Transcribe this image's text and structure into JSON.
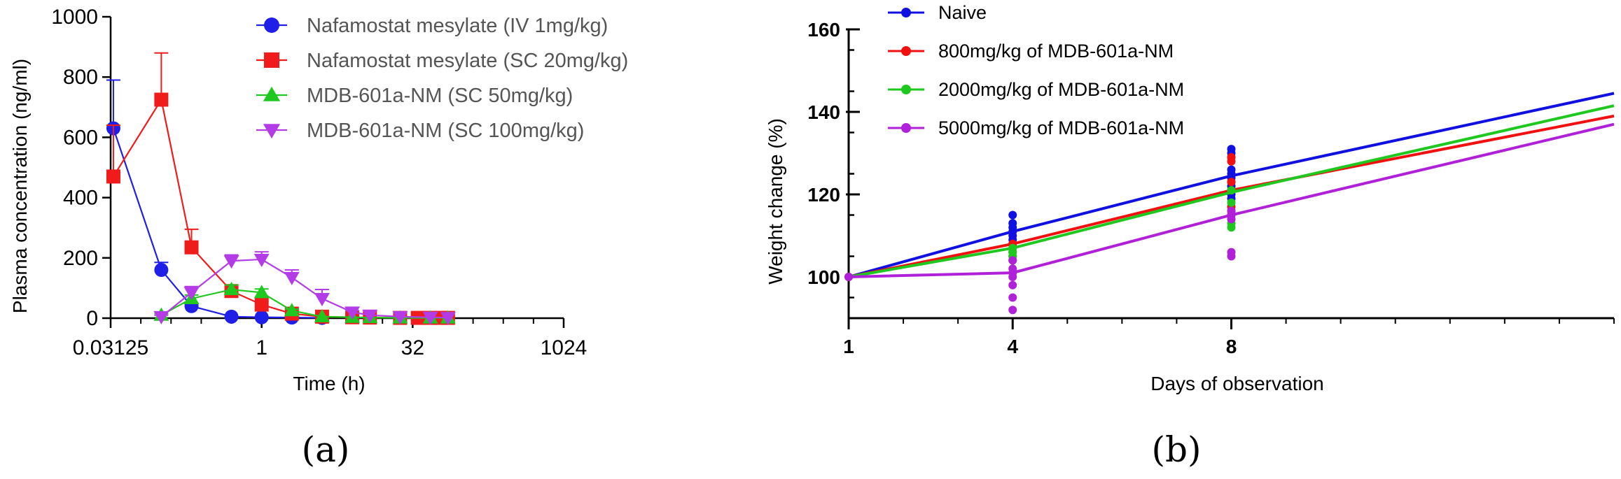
{
  "chart_data": [
    {
      "type": "line",
      "panel_label": "(a)",
      "xscale": "log2",
      "xlabel": "Time (h)",
      "ylabel": "Plasma concentration (ng/ml)",
      "xlim": [
        0.03125,
        1024
      ],
      "ylim": [
        0,
        1000
      ],
      "x_ticks": [
        0.03125,
        1,
        32,
        1024
      ],
      "x_tick_labels": [
        "0.03125",
        "1",
        "32",
        "1024"
      ],
      "y_ticks": [
        0,
        200,
        400,
        600,
        800,
        1000
      ],
      "y_tick_labels": [
        "0",
        "200",
        "400",
        "600",
        "800",
        "1000"
      ],
      "legend_position": "top-right",
      "series": [
        {
          "name": "Nafamostat mesylate (IV 1mg/kg)",
          "color": "#1f1fe8",
          "marker": "circle",
          "x": [
            0.0333,
            0.1,
            0.2,
            0.5,
            1,
            2,
            4
          ],
          "y": [
            630,
            160,
            40,
            5,
            3,
            2,
            1
          ],
          "err": [
            160,
            25,
            8,
            0,
            0,
            0,
            0
          ]
        },
        {
          "name": "Nafamostat mesylate (SC 20mg/kg)",
          "color": "#f01b1b",
          "marker": "square",
          "x": [
            0.0333,
            0.1,
            0.2,
            0.5,
            1,
            2,
            4,
            8,
            12,
            24,
            36,
            48,
            60,
            72
          ],
          "y": [
            470,
            725,
            235,
            90,
            45,
            15,
            5,
            3,
            2,
            1,
            1,
            1,
            1,
            1
          ],
          "err": [
            170,
            155,
            60,
            15,
            10,
            0,
            0,
            0,
            0,
            0,
            0,
            0,
            0,
            0
          ]
        },
        {
          "name": "MDB-601a-NM (SC 50mg/kg)",
          "color": "#1ec81e",
          "marker": "triangle-up",
          "x": [
            0.1,
            0.2,
            0.5,
            1,
            2,
            4,
            8,
            12,
            24,
            48,
            72
          ],
          "y": [
            10,
            65,
            95,
            85,
            25,
            5,
            3,
            2,
            1,
            1,
            1
          ],
          "err": [
            5,
            12,
            15,
            12,
            5,
            0,
            0,
            0,
            0,
            0,
            0
          ]
        },
        {
          "name": "MDB-601a-NM (SC 100mg/kg)",
          "color": "#b43ce6",
          "marker": "triangle-down",
          "x": [
            0.1,
            0.2,
            0.5,
            1,
            2,
            4,
            8,
            12,
            24,
            48,
            72
          ],
          "y": [
            5,
            85,
            190,
            195,
            135,
            65,
            20,
            10,
            5,
            3,
            2
          ],
          "err": [
            5,
            20,
            20,
            25,
            25,
            30,
            5,
            0,
            0,
            0,
            0
          ]
        }
      ]
    },
    {
      "type": "line",
      "panel_label": "(b)",
      "xlabel": "Days of observation",
      "ylabel": "Weight change (%)",
      "xlim": [
        1,
        15
      ],
      "ylim": [
        90,
        160
      ],
      "x_ticks": [
        1,
        4,
        8
      ],
      "x_tick_labels": [
        "1",
        "4",
        "8"
      ],
      "y_ticks": [
        100,
        120,
        140,
        160
      ],
      "y_tick_labels": [
        "100",
        "120",
        "140",
        "160"
      ],
      "legend_position": "top-left",
      "series": [
        {
          "name": "Naive",
          "color": "#1010e0",
          "x": [
            1,
            4,
            8,
            15
          ],
          "y": [
            100,
            111,
            124.5,
            144.5
          ],
          "points": [
            [
              1,
              100
            ],
            [
              4,
              115
            ],
            [
              4,
              113
            ],
            [
              4,
              112
            ],
            [
              4,
              111
            ],
            [
              4,
              110
            ],
            [
              4,
              109
            ],
            [
              4,
              108
            ],
            [
              8,
              131
            ],
            [
              8,
              130
            ],
            [
              8,
              129
            ],
            [
              8,
              126
            ],
            [
              8,
              125
            ],
            [
              8,
              124
            ],
            [
              8,
              123
            ],
            [
              8,
              122
            ],
            [
              8,
              121
            ],
            [
              8,
              120
            ],
            [
              8,
              119
            ]
          ]
        },
        {
          "name": "800mg/kg of MDB-601a-NM",
          "color": "#f01010",
          "x": [
            1,
            4,
            8,
            15
          ],
          "y": [
            100,
            108,
            121,
            139
          ],
          "points": [
            [
              1,
              100
            ],
            [
              4,
              108
            ],
            [
              4,
              107
            ],
            [
              4,
              106
            ],
            [
              4,
              105
            ],
            [
              4,
              104
            ],
            [
              8,
              129
            ],
            [
              8,
              128
            ],
            [
              8,
              123
            ],
            [
              8,
              121
            ],
            [
              8,
              117
            ],
            [
              8,
              116
            ],
            [
              8,
              115
            ]
          ]
        },
        {
          "name": "2000mg/kg of MDB-601a-NM",
          "color": "#1ec81e",
          "x": [
            1,
            4,
            8,
            15
          ],
          "y": [
            100,
            107,
            120.5,
            141.5
          ],
          "points": [
            [
              1,
              100
            ],
            [
              4,
              107
            ],
            [
              4,
              106
            ],
            [
              4,
              105
            ],
            [
              4,
              104
            ],
            [
              8,
              121
            ],
            [
              8,
              118
            ],
            [
              8,
              116
            ],
            [
              8,
              114
            ],
            [
              8,
              113
            ],
            [
              8,
              112
            ]
          ]
        },
        {
          "name": "5000mg/kg of MDB-601a-NM",
          "color": "#b020d8",
          "x": [
            1,
            4,
            8,
            15
          ],
          "y": [
            100,
            101,
            115,
            137
          ],
          "points": [
            [
              1,
              100
            ],
            [
              4,
              104
            ],
            [
              4,
              102
            ],
            [
              4,
              101
            ],
            [
              4,
              100
            ],
            [
              4,
              98
            ],
            [
              4,
              95
            ],
            [
              4,
              92
            ],
            [
              8,
              116
            ],
            [
              8,
              115
            ],
            [
              8,
              114
            ],
            [
              8,
              106
            ],
            [
              8,
              105
            ]
          ]
        }
      ]
    }
  ]
}
